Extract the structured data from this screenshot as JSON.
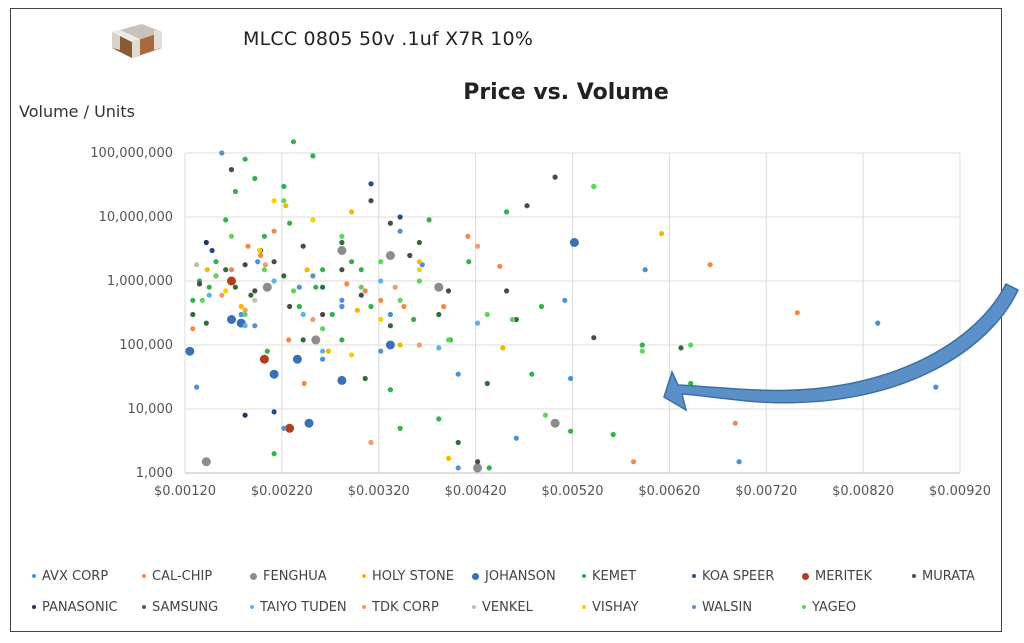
{
  "header": {
    "subtitle": "MLCC 0805 50v .1uf X7R 10%"
  },
  "chart_data": {
    "type": "scatter",
    "title": "Price vs. Volume",
    "xlabel": "",
    "ylabel": "Volume / Units",
    "xlim": [
      0.0012,
      0.0092
    ],
    "ylim": [
      1000,
      100000000
    ],
    "y_scale": "log",
    "grid": true,
    "legend_position": "bottom",
    "x_ticks": [
      "$0.00120",
      "$0.00220",
      "$0.00320",
      "$0.00420",
      "$0.00520",
      "$0.00620",
      "$0.00720",
      "$0.00820",
      "$0.00920"
    ],
    "y_ticks": [
      "100,000,000",
      "10,000,000",
      "1,000,000",
      "100,000",
      "10,000",
      "1,000"
    ],
    "series": [
      {
        "name": "AVX CORP",
        "color": "#4a90d9",
        "points": [
          [
            0.00132,
            22000
          ],
          [
            0.00195,
            2000000
          ],
          [
            0.00238,
            800000
          ],
          [
            0.00262,
            60000
          ],
          [
            0.00282,
            500000
          ],
          [
            0.00332,
            300000
          ],
          [
            0.00365,
            1800000
          ],
          [
            0.00402,
            35000
          ],
          [
            0.00462,
            3500
          ],
          [
            0.00512,
            500000
          ],
          [
            0.00518,
            30000
          ],
          [
            0.00595,
            1500000
          ],
          [
            0.00692,
            1500
          ],
          [
            0.00835,
            220000
          ],
          [
            0.00895,
            22000
          ]
        ]
      },
      {
        "name": "CAL-CHIP",
        "color": "#f08a4b",
        "points": [
          [
            0.00128,
            180000
          ],
          [
            0.00168,
            1500000
          ],
          [
            0.00185,
            3500000
          ],
          [
            0.00198,
            2500000
          ],
          [
            0.00212,
            6000000
          ],
          [
            0.00227,
            120000
          ],
          [
            0.00243,
            25000
          ],
          [
            0.00287,
            900000
          ],
          [
            0.00306,
            700000
          ],
          [
            0.00322,
            500000
          ],
          [
            0.00346,
            400000
          ],
          [
            0.00387,
            400000
          ],
          [
            0.00412,
            5000000
          ],
          [
            0.00445,
            1700000
          ],
          [
            0.00583,
            1500
          ],
          [
            0.00662,
            1800000
          ],
          [
            0.00688,
            6000
          ],
          [
            0.00752,
            320000
          ]
        ]
      },
      {
        "name": "FENGHUA",
        "color": "#8c8c8c",
        "points": [
          [
            0.00142,
            1500
          ],
          [
            0.00205,
            800000
          ],
          [
            0.00255,
            120000
          ],
          [
            0.00282,
            3000000
          ],
          [
            0.00332,
            2500000
          ],
          [
            0.00382,
            800000
          ],
          [
            0.00422,
            1200
          ],
          [
            0.00502,
            6000
          ]
        ]
      },
      {
        "name": "HOLY STONE",
        "color": "#f5b800",
        "points": [
          [
            0.00143,
            1500000
          ],
          [
            0.00178,
            400000
          ],
          [
            0.00224,
            15000000
          ],
          [
            0.00246,
            1500000
          ],
          [
            0.00268,
            80000
          ],
          [
            0.00292,
            12000000
          ],
          [
            0.00298,
            350000
          ],
          [
            0.00342,
            100000
          ],
          [
            0.00362,
            2000000
          ],
          [
            0.00392,
            1700
          ],
          [
            0.00448,
            90000
          ],
          [
            0.00612,
            5500000
          ]
        ]
      },
      {
        "name": "JOHANSON",
        "color": "#3b6fb6",
        "points": [
          [
            0.00125,
            80000
          ],
          [
            0.00168,
            250000
          ],
          [
            0.00178,
            220000
          ],
          [
            0.00212,
            35000
          ],
          [
            0.00236,
            60000
          ],
          [
            0.00248,
            6000
          ],
          [
            0.00282,
            28000
          ],
          [
            0.00332,
            100000
          ],
          [
            0.00522,
            4000000
          ]
        ]
      },
      {
        "name": "KEMET",
        "color": "#33b14a",
        "points": [
          [
            0.00128,
            500000
          ],
          [
            0.00135,
            1000000
          ],
          [
            0.00145,
            800000
          ],
          [
            0.00152,
            2000000
          ],
          [
            0.00162,
            9000000
          ],
          [
            0.00172,
            25000000
          ],
          [
            0.00182,
            80000000
          ],
          [
            0.00192,
            40000000
          ],
          [
            0.00202,
            5000000
          ],
          [
            0.00205,
            80000
          ],
          [
            0.00212,
            2000
          ],
          [
            0.00222,
            30000000
          ],
          [
            0.00228,
            8000000
          ],
          [
            0.00232,
            150000000
          ],
          [
            0.00238,
            400000
          ],
          [
            0.00252,
            90000000
          ],
          [
            0.00255,
            800000
          ],
          [
            0.00262,
            1500000
          ],
          [
            0.00272,
            300000
          ],
          [
            0.00282,
            120000
          ],
          [
            0.00292,
            2000000
          ],
          [
            0.00302,
            1500000
          ],
          [
            0.00312,
            400000
          ],
          [
            0.00332,
            20000
          ],
          [
            0.00342,
            5000
          ],
          [
            0.00356,
            250000
          ],
          [
            0.00372,
            9000000
          ],
          [
            0.00382,
            7000
          ],
          [
            0.00394,
            120000
          ],
          [
            0.00413,
            2000000
          ],
          [
            0.00434,
            1200
          ],
          [
            0.00452,
            12000000
          ],
          [
            0.00478,
            35000
          ],
          [
            0.00488,
            400000
          ],
          [
            0.00518,
            4500
          ],
          [
            0.00542,
            30000000
          ],
          [
            0.00562,
            4000
          ],
          [
            0.00592,
            100000
          ],
          [
            0.00642,
            25000
          ]
        ]
      },
      {
        "name": "KOA SPEER",
        "color": "#1f4e8c",
        "points": [
          [
            0.00148,
            3000000
          ],
          [
            0.00212,
            9000
          ],
          [
            0.00312,
            33000000
          ],
          [
            0.00342,
            10000000
          ]
        ]
      },
      {
        "name": "MERITEK",
        "color": "#b0401a",
        "points": [
          [
            0.00168,
            1000000
          ],
          [
            0.00202,
            60000
          ],
          [
            0.00228,
            5000
          ]
        ]
      },
      {
        "name": "MURATA",
        "color": "#4a4a4a",
        "points": [
          [
            0.00135,
            900000
          ],
          [
            0.00168,
            55000000
          ],
          [
            0.00182,
            1800000
          ],
          [
            0.00192,
            700000
          ],
          [
            0.00212,
            2000000
          ],
          [
            0.00228,
            400000
          ],
          [
            0.00242,
            3500000
          ],
          [
            0.00262,
            300000
          ],
          [
            0.00282,
            1500000
          ],
          [
            0.00302,
            600000
          ],
          [
            0.00312,
            18000000
          ],
          [
            0.00332,
            8000000
          ],
          [
            0.00352,
            2500000
          ],
          [
            0.00392,
            700000
          ],
          [
            0.00422,
            1500
          ],
          [
            0.00452,
            700000
          ],
          [
            0.00473,
            15000000
          ],
          [
            0.00502,
            42000000
          ],
          [
            0.00542,
            130000
          ]
        ]
      },
      {
        "name": "PANASONIC",
        "color": "#23336b",
        "points": [
          [
            0.00142,
            4000000
          ],
          [
            0.00182,
            8000
          ]
        ]
      },
      {
        "name": "SAMSUNG",
        "color": "#2f6e3a",
        "points": [
          [
            0.00128,
            300000
          ],
          [
            0.00142,
            220000
          ],
          [
            0.00162,
            1500000
          ],
          [
            0.00172,
            800000
          ],
          [
            0.00188,
            600000
          ],
          [
            0.00198,
            3000000
          ],
          [
            0.00222,
            1200000
          ],
          [
            0.00242,
            120000
          ],
          [
            0.00262,
            800000
          ],
          [
            0.00282,
            4000000
          ],
          [
            0.00306,
            30000
          ],
          [
            0.00332,
            200000
          ],
          [
            0.00362,
            4000000
          ],
          [
            0.00382,
            300000
          ],
          [
            0.00402,
            3000
          ],
          [
            0.00432,
            25000
          ],
          [
            0.00462,
            250000
          ],
          [
            0.00632,
            90000
          ]
        ]
      },
      {
        "name": "TAIYO TUDEN",
        "color": "#62b0e8",
        "points": [
          [
            0.00145,
            600000
          ],
          [
            0.00182,
            200000
          ],
          [
            0.00212,
            1000000
          ],
          [
            0.00242,
            300000
          ],
          [
            0.00262,
            80000
          ],
          [
            0.00282,
            400000
          ],
          [
            0.00322,
            1000000
          ],
          [
            0.00382,
            90000
          ],
          [
            0.00422,
            220000
          ]
        ]
      },
      {
        "name": "TDK CORP",
        "color": "#f59a6a",
        "points": [
          [
            0.00158,
            600000
          ],
          [
            0.00182,
            350000
          ],
          [
            0.00203,
            1800000
          ],
          [
            0.00252,
            250000
          ],
          [
            0.00312,
            3000
          ],
          [
            0.00337,
            800000
          ],
          [
            0.00362,
            100000
          ],
          [
            0.00422,
            3500000
          ]
        ]
      },
      {
        "name": "VENKEL",
        "color": "#bdbdbd",
        "points": [
          [
            0.00132,
            1800000
          ],
          [
            0.00192,
            500000
          ]
        ]
      },
      {
        "name": "VISHAY",
        "color": "#f2d200",
        "points": [
          [
            0.00162,
            700000
          ],
          [
            0.00197,
            3000000
          ],
          [
            0.00212,
            18000000
          ],
          [
            0.00252,
            9000000
          ],
          [
            0.00292,
            70000
          ],
          [
            0.00322,
            250000
          ],
          [
            0.00362,
            1500000
          ]
        ]
      },
      {
        "name": "WALSIN",
        "color": "#5b8fd0",
        "points": [
          [
            0.00158,
            100000000
          ],
          [
            0.00178,
            300000
          ],
          [
            0.00192,
            200000
          ],
          [
            0.00222,
            5000
          ],
          [
            0.00252,
            1200000
          ],
          [
            0.00282,
            400000
          ],
          [
            0.00322,
            80000
          ],
          [
            0.00342,
            6000000
          ],
          [
            0.00402,
            1200
          ]
        ]
      },
      {
        "name": "YAGEO",
        "color": "#5ed45e",
        "points": [
          [
            0.00138,
            500000
          ],
          [
            0.00152,
            1200000
          ],
          [
            0.00168,
            5000000
          ],
          [
            0.00182,
            300000
          ],
          [
            0.00202,
            1500000
          ],
          [
            0.00222,
            18000000
          ],
          [
            0.00232,
            700000
          ],
          [
            0.00262,
            180000
          ],
          [
            0.00282,
            5000000
          ],
          [
            0.00302,
            800000
          ],
          [
            0.00322,
            2000000
          ],
          [
            0.00342,
            500000
          ],
          [
            0.00362,
            1000000
          ],
          [
            0.00392,
            120000
          ],
          [
            0.00432,
            300000
          ],
          [
            0.00458,
            250000
          ],
          [
            0.00492,
            8000
          ],
          [
            0.00542,
            30000000
          ],
          [
            0.00592,
            80000
          ],
          [
            0.00642,
            100000
          ]
        ]
      }
    ]
  }
}
